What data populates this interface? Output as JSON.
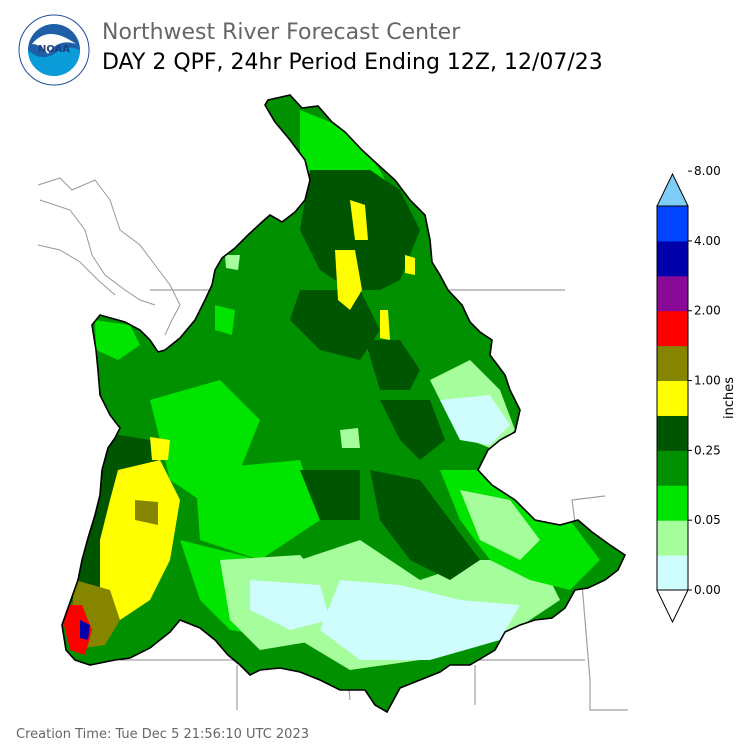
{
  "header": {
    "org_title": "Northwest River Forecast Center",
    "product_title": "DAY 2 QPF, 24hr Period Ending 12Z, 12/07/23"
  },
  "logo": {
    "icon": "noaa-logo-icon",
    "center_text": "NOAA",
    "ring_text": "NATIONAL OCEANIC AND ATMOSPHERIC ADMINISTRATION · U.S. DEPARTMENT OF COMMERCE"
  },
  "legend": {
    "unit_label": "inches",
    "tick_labels": [
      "0.00",
      "0.05",
      "0.25",
      "1.00",
      "2.00",
      "4.00",
      "8.00"
    ],
    "color_bins": [
      "#ffffff",
      "#cffcfc",
      "#a5fd9c",
      "#00e400",
      "#009000",
      "#005500",
      "#ffff00",
      "#858500",
      "#ff0000",
      "#8a0a98",
      "#0000aa",
      "#0044ff",
      "#7fcefa"
    ]
  },
  "footer": {
    "creation_time": "Creation Time: Tue Dec 5 21:56:10 UTC 2023"
  },
  "colors": {
    "outline": "#000000",
    "borders": "#a0a0a0",
    "coast": "#999999"
  }
}
